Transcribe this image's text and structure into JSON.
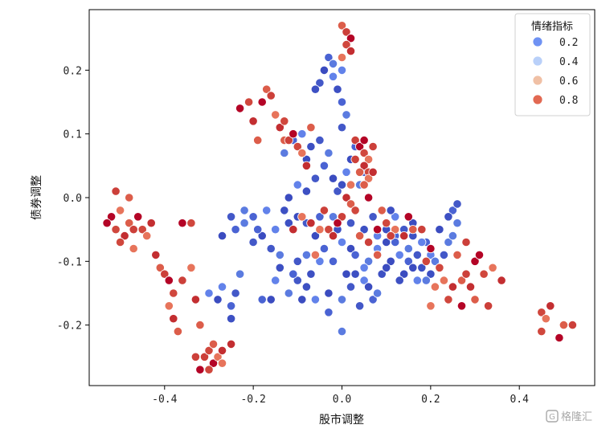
{
  "chart_data": {
    "type": "scatter",
    "title": "",
    "xlabel": "股市调整",
    "ylabel": "债券调整",
    "xlim": [
      -0.57,
      0.57
    ],
    "ylim": [
      -0.295,
      0.295
    ],
    "xticks": [
      -0.4,
      -0.2,
      0.0,
      0.2,
      0.4
    ],
    "xtick_labels": [
      "-0.4",
      "-0.2",
      "0.0",
      "0.2",
      "0.4"
    ],
    "yticks": [
      -0.2,
      -0.1,
      0.0,
      0.1,
      0.2
    ],
    "ytick_labels": [
      "-0.2",
      "-0.1",
      "0.0",
      "0.1",
      "0.2"
    ],
    "grid": false,
    "legend": {
      "title": "情绪指标",
      "placement": "top-right",
      "entries": [
        {
          "label": "0.2",
          "value": 0.2
        },
        {
          "label": "0.4",
          "value": 0.4
        },
        {
          "label": "0.6",
          "value": 0.6
        },
        {
          "label": "0.8",
          "value": 0.8
        }
      ]
    },
    "colormap": "coolwarm",
    "series": [
      {
        "hue": "low",
        "points": [
          [
            -0.1,
            -0.03
          ],
          [
            -0.05,
            -0.03
          ],
          [
            -0.02,
            -0.03
          ],
          [
            0.02,
            -0.04
          ],
          [
            0.05,
            -0.05
          ],
          [
            0.08,
            -0.06
          ],
          [
            0.1,
            -0.07
          ],
          [
            0.12,
            -0.06
          ],
          [
            0.15,
            -0.08
          ],
          [
            0.17,
            -0.09
          ],
          [
            0.18,
            -0.11
          ],
          [
            0.2,
            -0.09
          ],
          [
            0.22,
            -0.05
          ],
          [
            0.25,
            -0.02
          ],
          [
            0.26,
            -0.04
          ],
          [
            0.14,
            -0.05
          ],
          [
            0.16,
            -0.06
          ],
          [
            0.13,
            -0.09
          ],
          [
            0.11,
            -0.1
          ],
          [
            0.19,
            -0.07
          ],
          [
            0.21,
            -0.1
          ],
          [
            -0.08,
            -0.04
          ],
          [
            -0.12,
            -0.04
          ],
          [
            -0.15,
            -0.05
          ],
          [
            -0.18,
            -0.06
          ],
          [
            -0.2,
            -0.03
          ],
          [
            -0.22,
            -0.04
          ],
          [
            -0.25,
            -0.03
          ],
          [
            -0.13,
            -0.02
          ],
          [
            -0.17,
            -0.02
          ],
          [
            -0.06,
            -0.06
          ],
          [
            -0.04,
            -0.08
          ],
          [
            -0.08,
            -0.09
          ],
          [
            -0.1,
            -0.1
          ],
          [
            -0.14,
            -0.11
          ],
          [
            -0.15,
            -0.13
          ],
          [
            -0.16,
            -0.16
          ],
          [
            -0.18,
            -0.16
          ],
          [
            -0.12,
            -0.15
          ],
          [
            -0.1,
            -0.13
          ],
          [
            -0.08,
            -0.14
          ],
          [
            -0.06,
            -0.16
          ],
          [
            -0.03,
            -0.15
          ],
          [
            -0.03,
            -0.18
          ],
          [
            0.0,
            -0.16
          ],
          [
            0.02,
            -0.14
          ],
          [
            0.03,
            -0.12
          ],
          [
            0.05,
            -0.13
          ],
          [
            0.06,
            -0.14
          ],
          [
            0.07,
            -0.16
          ],
          [
            0.08,
            -0.15
          ],
          [
            0.04,
            -0.17
          ],
          [
            0.09,
            -0.12
          ],
          [
            -0.27,
            -0.14
          ],
          [
            -0.28,
            -0.16
          ],
          [
            -0.25,
            -0.17
          ],
          [
            -0.23,
            -0.12
          ],
          [
            -0.24,
            -0.15
          ],
          [
            -0.25,
            -0.19
          ],
          [
            -0.3,
            -0.15
          ],
          [
            -0.27,
            -0.06
          ],
          [
            -0.24,
            -0.05
          ],
          [
            0.0,
            -0.21
          ],
          [
            -0.01,
            0.01
          ],
          [
            0.0,
            0.02
          ],
          [
            0.01,
            0.04
          ],
          [
            -0.02,
            0.03
          ],
          [
            -0.04,
            0.05
          ],
          [
            -0.03,
            0.07
          ],
          [
            -0.05,
            0.09
          ],
          [
            -0.07,
            0.08
          ],
          [
            -0.09,
            0.1
          ],
          [
            -0.08,
            0.06
          ],
          [
            -0.11,
            0.09
          ],
          [
            -0.13,
            0.07
          ],
          [
            -0.06,
            0.03
          ],
          [
            -0.08,
            0.01
          ],
          [
            -0.1,
            0.02
          ],
          [
            -0.12,
            0.0
          ],
          [
            0.0,
            0.15
          ],
          [
            0.01,
            0.13
          ],
          [
            0.0,
            0.11
          ],
          [
            -0.01,
            0.17
          ],
          [
            -0.02,
            0.19
          ],
          [
            -0.04,
            0.2
          ],
          [
            -0.03,
            0.22
          ],
          [
            -0.02,
            0.21
          ],
          [
            -0.05,
            0.18
          ],
          [
            -0.06,
            0.17
          ],
          [
            0.0,
            0.2
          ],
          [
            0.02,
            0.06
          ],
          [
            0.03,
            0.08
          ],
          [
            0.04,
            0.02
          ],
          [
            0.05,
            0.04
          ],
          [
            -0.01,
            -0.05
          ],
          [
            0.0,
            -0.07
          ],
          [
            0.02,
            -0.08
          ],
          [
            -0.02,
            -0.1
          ],
          [
            0.06,
            -0.1
          ],
          [
            0.07,
            -0.03
          ],
          [
            0.1,
            -0.05
          ],
          [
            0.12,
            -0.03
          ],
          [
            0.16,
            -0.04
          ],
          [
            0.18,
            -0.05
          ],
          [
            0.24,
            -0.07
          ],
          [
            0.23,
            -0.09
          ],
          [
            0.2,
            -0.12
          ],
          [
            0.17,
            -0.13
          ],
          [
            0.14,
            -0.12
          ],
          [
            -0.19,
            -0.05
          ],
          [
            -0.22,
            -0.02
          ],
          [
            -0.2,
            -0.07
          ],
          [
            0.11,
            -0.02
          ],
          [
            0.08,
            -0.08
          ],
          [
            0.1,
            -0.11
          ],
          [
            0.15,
            -0.1
          ],
          [
            0.19,
            -0.13
          ],
          [
            0.22,
            -0.11
          ],
          [
            0.13,
            -0.13
          ],
          [
            0.05,
            -0.11
          ],
          [
            -0.09,
            -0.16
          ],
          [
            -0.11,
            -0.12
          ],
          [
            -0.14,
            -0.09
          ],
          [
            -0.16,
            -0.08
          ],
          [
            -0.07,
            -0.12
          ],
          [
            -0.05,
            -0.1
          ],
          [
            0.01,
            -0.12
          ],
          [
            0.03,
            -0.09
          ],
          [
            0.25,
            -0.06
          ],
          [
            0.26,
            -0.01
          ],
          [
            0.24,
            -0.03
          ],
          [
            0.18,
            -0.07
          ],
          [
            0.16,
            -0.11
          ],
          [
            0.12,
            -0.07
          ]
        ]
      },
      {
        "hue": "high",
        "points": [
          [
            -0.52,
            -0.03
          ],
          [
            -0.51,
            -0.05
          ],
          [
            -0.5,
            -0.02
          ],
          [
            -0.49,
            -0.06
          ],
          [
            -0.48,
            -0.04
          ],
          [
            -0.47,
            -0.05
          ],
          [
            -0.46,
            -0.03
          ],
          [
            -0.45,
            -0.05
          ],
          [
            -0.44,
            -0.06
          ],
          [
            -0.43,
            -0.04
          ],
          [
            -0.48,
            0.0
          ],
          [
            -0.51,
            0.01
          ],
          [
            -0.53,
            -0.04
          ],
          [
            -0.5,
            -0.07
          ],
          [
            -0.47,
            -0.08
          ],
          [
            -0.42,
            -0.09
          ],
          [
            -0.41,
            -0.11
          ],
          [
            -0.4,
            -0.12
          ],
          [
            -0.39,
            -0.13
          ],
          [
            -0.38,
            -0.15
          ],
          [
            -0.39,
            -0.17
          ],
          [
            -0.38,
            -0.19
          ],
          [
            -0.37,
            -0.21
          ],
          [
            -0.36,
            -0.13
          ],
          [
            -0.36,
            -0.04
          ],
          [
            -0.34,
            -0.04
          ],
          [
            -0.34,
            -0.11
          ],
          [
            -0.33,
            -0.16
          ],
          [
            -0.32,
            -0.2
          ],
          [
            -0.31,
            -0.25
          ],
          [
            -0.29,
            -0.26
          ],
          [
            -0.3,
            -0.24
          ],
          [
            -0.28,
            -0.25
          ],
          [
            -0.27,
            -0.24
          ],
          [
            -0.29,
            -0.23
          ],
          [
            -0.33,
            -0.25
          ],
          [
            -0.32,
            -0.27
          ],
          [
            -0.3,
            -0.27
          ],
          [
            -0.27,
            -0.26
          ],
          [
            -0.25,
            -0.23
          ],
          [
            0.0,
            0.27
          ],
          [
            0.01,
            0.26
          ],
          [
            0.02,
            0.25
          ],
          [
            0.01,
            0.24
          ],
          [
            0.0,
            0.22
          ],
          [
            0.02,
            0.23
          ],
          [
            -0.17,
            0.17
          ],
          [
            -0.16,
            0.16
          ],
          [
            -0.18,
            0.15
          ],
          [
            -0.21,
            0.15
          ],
          [
            -0.15,
            0.13
          ],
          [
            -0.14,
            0.11
          ],
          [
            -0.13,
            0.09
          ],
          [
            -0.12,
            0.09
          ],
          [
            -0.11,
            0.1
          ],
          [
            -0.1,
            0.08
          ],
          [
            -0.09,
            0.07
          ],
          [
            -0.08,
            0.05
          ],
          [
            -0.19,
            0.09
          ],
          [
            0.03,
            0.09
          ],
          [
            0.04,
            0.08
          ],
          [
            0.05,
            0.07
          ],
          [
            0.06,
            0.06
          ],
          [
            0.05,
            0.05
          ],
          [
            0.04,
            0.04
          ],
          [
            0.03,
            0.06
          ],
          [
            0.05,
            0.09
          ],
          [
            0.06,
            0.04
          ],
          [
            0.02,
            0.02
          ],
          [
            0.01,
            0.0
          ],
          [
            0.02,
            -0.01
          ],
          [
            0.0,
            -0.03
          ],
          [
            -0.01,
            -0.04
          ],
          [
            -0.03,
            -0.05
          ],
          [
            -0.05,
            -0.05
          ],
          [
            -0.07,
            -0.04
          ],
          [
            0.04,
            -0.06
          ],
          [
            0.06,
            -0.07
          ],
          [
            0.08,
            -0.05
          ],
          [
            0.1,
            -0.04
          ],
          [
            0.12,
            -0.05
          ],
          [
            0.14,
            -0.06
          ],
          [
            0.16,
            -0.05
          ],
          [
            0.18,
            -0.05
          ],
          [
            0.2,
            -0.08
          ],
          [
            0.22,
            -0.11
          ],
          [
            0.23,
            -0.13
          ],
          [
            0.25,
            -0.14
          ],
          [
            0.27,
            -0.13
          ],
          [
            0.28,
            -0.12
          ],
          [
            0.3,
            -0.1
          ],
          [
            0.32,
            -0.12
          ],
          [
            0.34,
            -0.11
          ],
          [
            0.36,
            -0.13
          ],
          [
            0.3,
            -0.16
          ],
          [
            0.33,
            -0.17
          ],
          [
            0.27,
            -0.17
          ],
          [
            0.24,
            -0.16
          ],
          [
            0.2,
            -0.17
          ],
          [
            0.29,
            -0.14
          ],
          [
            0.26,
            -0.09
          ],
          [
            0.28,
            -0.07
          ],
          [
            0.31,
            -0.09
          ],
          [
            0.45,
            -0.18
          ],
          [
            0.46,
            -0.19
          ],
          [
            0.47,
            -0.17
          ],
          [
            0.5,
            -0.2
          ],
          [
            0.52,
            -0.2
          ],
          [
            0.49,
            -0.22
          ],
          [
            0.45,
            -0.21
          ],
          [
            -0.06,
            -0.09
          ],
          [
            -0.02,
            -0.06
          ],
          [
            0.08,
            -0.09
          ],
          [
            -0.04,
            -0.02
          ],
          [
            0.06,
            0.0
          ],
          [
            0.03,
            -0.02
          ],
          [
            -0.09,
            -0.03
          ],
          [
            -0.11,
            -0.05
          ],
          [
            0.09,
            -0.02
          ],
          [
            0.11,
            -0.06
          ],
          [
            0.15,
            -0.03
          ],
          [
            0.19,
            -0.1
          ],
          [
            0.21,
            -0.14
          ],
          [
            -0.2,
            0.12
          ],
          [
            -0.07,
            0.11
          ],
          [
            0.07,
            0.08
          ],
          [
            -0.23,
            0.14
          ],
          [
            -0.13,
            0.12
          ],
          [
            0.06,
            0.03
          ],
          [
            0.07,
            0.04
          ],
          [
            0.05,
            0.02
          ]
        ]
      }
    ]
  },
  "watermark": "格隆汇"
}
